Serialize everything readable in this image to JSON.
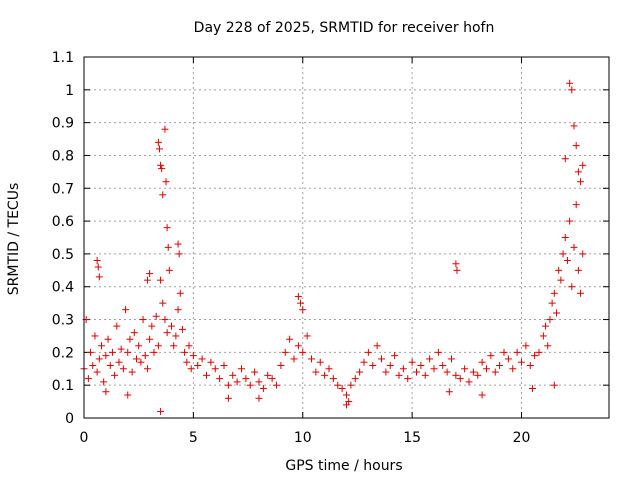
{
  "chart_data": {
    "type": "scatter",
    "title": "Day 228 of 2025, SRMTID for receiver hofn",
    "xlabel": "GPS time / hours",
    "ylabel": "SRMTID / TECUs",
    "xlim": [
      0,
      24
    ],
    "ylim": [
      0,
      1.1
    ],
    "xticks": [
      0,
      5,
      10,
      15,
      20
    ],
    "xtick_labels": [
      "0",
      "5",
      "10",
      "15",
      "20"
    ],
    "yticks": [
      0,
      0.1,
      0.2,
      0.3,
      0.4,
      0.5,
      0.6,
      0.7,
      0.8,
      0.9,
      1.0,
      1.1
    ],
    "ytick_labels": [
      "0",
      "0.1",
      "0.2",
      "0.3",
      "0.4",
      "0.5",
      "0.6",
      "0.7",
      "0.8",
      "0.9",
      "1",
      "1.1"
    ],
    "grid": true,
    "marker": "plus",
    "marker_color": "#e00000",
    "series": [
      {
        "name": "SRMTID",
        "description": "Dense scatter of SRMTID values; values below are representative points read from the plot",
        "x": [
          0.0,
          0.1,
          0.2,
          0.3,
          0.4,
          0.5,
          0.6,
          0.7,
          0.8,
          0.9,
          1.0,
          1.1,
          1.2,
          1.3,
          1.4,
          1.5,
          1.6,
          1.7,
          1.8,
          1.9,
          2.0,
          2.1,
          2.2,
          2.3,
          2.4,
          2.5,
          2.6,
          2.7,
          2.8,
          2.9,
          3.0,
          3.1,
          3.2,
          3.3,
          3.4,
          3.5,
          3.6,
          3.7,
          3.8,
          3.9,
          4.0,
          4.1,
          4.2,
          4.3,
          4.4,
          4.5,
          4.6,
          4.7,
          4.8,
          4.9,
          5.0,
          5.2,
          5.4,
          5.6,
          5.8,
          6.0,
          6.2,
          6.4,
          6.6,
          6.8,
          7.0,
          7.2,
          7.4,
          7.6,
          7.8,
          8.0,
          8.2,
          8.4,
          8.6,
          8.8,
          9.0,
          9.2,
          9.4,
          9.6,
          9.8,
          10.0,
          10.2,
          10.4,
          10.6,
          10.8,
          11.0,
          11.2,
          11.4,
          11.6,
          11.8,
          12.0,
          12.2,
          12.4,
          12.6,
          12.8,
          13.0,
          13.2,
          13.4,
          13.6,
          13.8,
          14.0,
          14.2,
          14.4,
          14.6,
          14.8,
          15.0,
          15.2,
          15.4,
          15.6,
          15.8,
          16.0,
          16.2,
          16.4,
          16.6,
          16.8,
          17.0,
          17.2,
          17.4,
          17.6,
          17.8,
          18.0,
          18.2,
          18.4,
          18.6,
          18.8,
          19.0,
          19.2,
          19.4,
          19.6,
          19.8,
          20.0,
          20.2,
          20.4,
          20.6,
          20.8,
          21.0,
          21.1,
          21.2,
          21.3,
          21.4,
          21.5,
          21.6,
          21.7,
          21.8,
          21.9,
          22.0,
          22.1,
          22.2,
          22.3,
          22.4,
          22.5,
          22.6,
          22.7,
          22.8,
          3.4,
          3.45,
          3.5,
          3.55,
          3.6,
          3.7,
          3.75,
          3.8,
          3.85,
          4.3,
          4.35,
          0.6,
          0.65,
          0.7,
          2.9,
          3.0,
          17.0,
          17.05,
          9.8,
          9.9,
          10.0,
          22.0,
          22.2,
          22.3,
          22.4,
          22.5,
          22.6,
          22.7,
          22.8,
          1.0,
          2.0,
          6.6,
          12.0,
          3.5,
          12.1,
          8.0,
          18.2,
          16.7,
          20.5,
          21.5
        ],
        "y": [
          0.15,
          0.3,
          0.12,
          0.2,
          0.16,
          0.25,
          0.14,
          0.18,
          0.22,
          0.11,
          0.19,
          0.24,
          0.16,
          0.2,
          0.13,
          0.28,
          0.17,
          0.21,
          0.15,
          0.33,
          0.2,
          0.24,
          0.14,
          0.26,
          0.18,
          0.22,
          0.17,
          0.3,
          0.19,
          0.15,
          0.24,
          0.28,
          0.2,
          0.31,
          0.22,
          0.42,
          0.35,
          0.3,
          0.26,
          0.45,
          0.28,
          0.22,
          0.25,
          0.33,
          0.38,
          0.27,
          0.2,
          0.17,
          0.22,
          0.15,
          0.19,
          0.16,
          0.18,
          0.13,
          0.17,
          0.15,
          0.12,
          0.16,
          0.1,
          0.13,
          0.11,
          0.15,
          0.12,
          0.1,
          0.14,
          0.11,
          0.09,
          0.13,
          0.12,
          0.1,
          0.16,
          0.2,
          0.24,
          0.18,
          0.22,
          0.2,
          0.25,
          0.18,
          0.14,
          0.17,
          0.13,
          0.15,
          0.12,
          0.1,
          0.09,
          0.07,
          0.1,
          0.12,
          0.14,
          0.17,
          0.2,
          0.16,
          0.22,
          0.18,
          0.14,
          0.16,
          0.19,
          0.13,
          0.15,
          0.12,
          0.17,
          0.14,
          0.16,
          0.13,
          0.18,
          0.15,
          0.2,
          0.16,
          0.14,
          0.18,
          0.13,
          0.12,
          0.15,
          0.11,
          0.14,
          0.13,
          0.17,
          0.15,
          0.19,
          0.14,
          0.16,
          0.2,
          0.18,
          0.15,
          0.2,
          0.17,
          0.22,
          0.16,
          0.19,
          0.2,
          0.25,
          0.28,
          0.22,
          0.3,
          0.35,
          0.38,
          0.32,
          0.45,
          0.42,
          0.5,
          0.55,
          0.48,
          0.6,
          0.4,
          0.52,
          0.65,
          0.45,
          0.38,
          0.5,
          0.84,
          0.82,
          0.77,
          0.76,
          0.68,
          0.88,
          0.72,
          0.58,
          0.52,
          0.53,
          0.5,
          0.48,
          0.46,
          0.43,
          0.42,
          0.44,
          0.47,
          0.45,
          0.37,
          0.35,
          0.33,
          0.79,
          1.02,
          1.0,
          0.89,
          0.83,
          0.75,
          0.72,
          0.77,
          0.08,
          0.07,
          0.06,
          0.04,
          0.02,
          0.05,
          0.06,
          0.07,
          0.08,
          0.09,
          0.1
        ]
      }
    ]
  }
}
